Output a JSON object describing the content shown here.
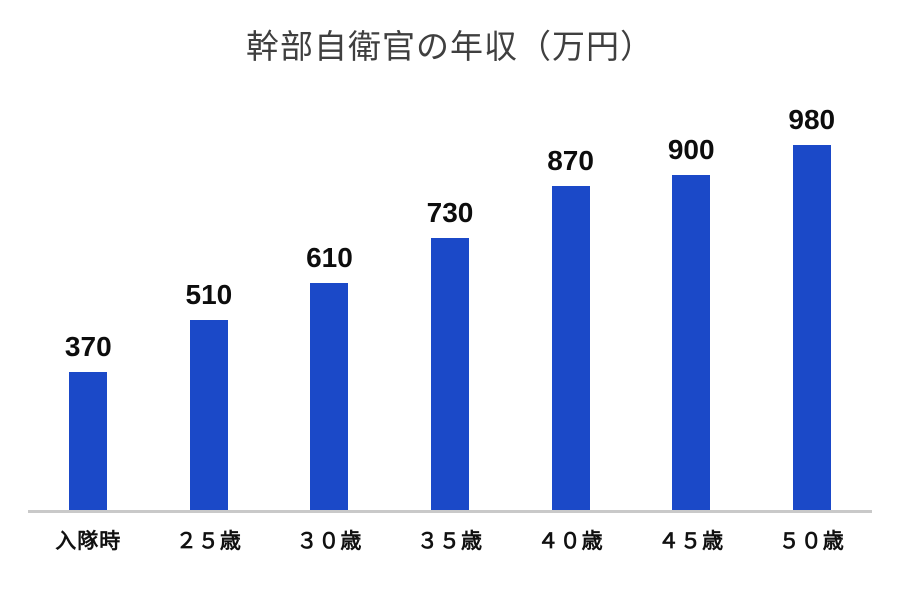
{
  "colors": {
    "bar": "#1b49c8",
    "axis_line": "#c9c9c9",
    "title_text": "#3f3f3f",
    "value_label_text": "#0d0d0d",
    "category_label_text": "#111111",
    "background": "#ffffff"
  },
  "chart_data": {
    "type": "bar",
    "title": "幹部自衛官の年収（万円）",
    "categories": [
      "入隊時",
      "２５歳",
      "３０歳",
      "３５歳",
      "４０歳",
      "４５歳",
      "５０歳"
    ],
    "values": [
      370,
      510,
      610,
      730,
      870,
      900,
      980
    ],
    "xlabel": "",
    "ylabel": "",
    "ylim": [
      0,
      1000
    ],
    "grid": false,
    "legend": "none",
    "y_axis_visible": false,
    "data_labels": "above-bars",
    "bar_color": "#1b49c8"
  }
}
